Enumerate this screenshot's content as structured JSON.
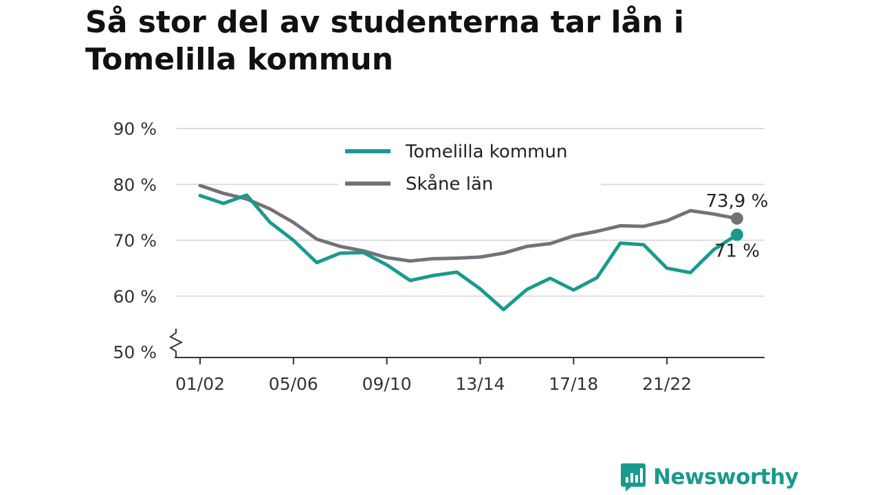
{
  "title": "Så stor del av studenterna tar lån i Tomelilla kommun",
  "brand": {
    "name": "Newsworthy",
    "color": "#1a9a8e",
    "icon": "bar-chart-speech-bubble-icon"
  },
  "chart_data": {
    "type": "line",
    "title": "Så stor del av studenterna tar lån i Tomelilla kommun",
    "xlabel": "",
    "ylabel": "",
    "ylim": [
      50,
      90
    ],
    "y_axis_break": true,
    "grid": true,
    "legend_position": "top-center",
    "y_ticks": [
      {
        "value": 50,
        "label": "50 %"
      },
      {
        "value": 60,
        "label": "60 %"
      },
      {
        "value": 70,
        "label": "70 %"
      },
      {
        "value": 80,
        "label": "80 %"
      },
      {
        "value": 90,
        "label": "90 %"
      }
    ],
    "x_ticks": [
      "01/02",
      "05/06",
      "09/10",
      "13/14",
      "17/18",
      "21/22"
    ],
    "categories": [
      "01/02",
      "02/03",
      "03/04",
      "04/05",
      "05/06",
      "06/07",
      "07/08",
      "08/09",
      "09/10",
      "10/11",
      "11/12",
      "12/13",
      "13/14",
      "14/15",
      "15/16",
      "16/17",
      "17/18",
      "18/19",
      "19/20",
      "20/21",
      "21/22",
      "22/23",
      "23/24",
      "24/25"
    ],
    "series": [
      {
        "name": "Tomelilla kommun",
        "color": "#1a9a8e",
        "values": [
          78.0,
          76.6,
          78.1,
          73.2,
          70.0,
          66.0,
          67.7,
          67.8,
          65.6,
          62.8,
          63.7,
          64.3,
          61.3,
          57.6,
          61.2,
          63.2,
          61.1,
          63.3,
          69.5,
          69.2,
          65.0,
          64.2,
          68.3,
          71.0
        ],
        "end_label": "71 %"
      },
      {
        "name": "Skåne län",
        "color": "#737278",
        "values": [
          79.8,
          78.4,
          77.4,
          75.6,
          73.2,
          70.2,
          68.9,
          68.1,
          66.9,
          66.3,
          66.7,
          66.8,
          67.0,
          67.7,
          68.9,
          69.4,
          70.8,
          71.6,
          72.6,
          72.5,
          73.5,
          75.3,
          74.7,
          73.9
        ],
        "end_label": "73,9 %"
      }
    ]
  }
}
